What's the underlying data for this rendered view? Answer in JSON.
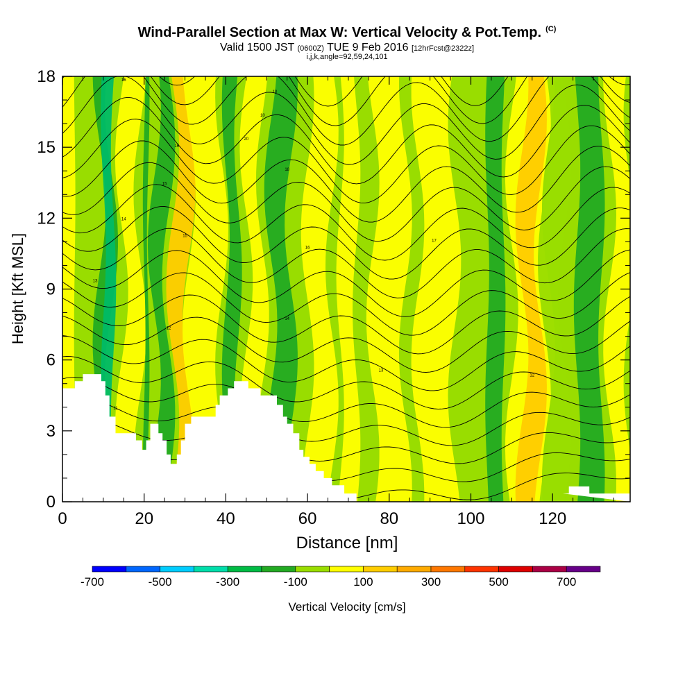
{
  "header": {
    "title": "Wind-Parallel Section at Max W: Vertical Velocity & Pot.Temp.",
    "title_tag": "(C)",
    "valid_prefix": "Valid 1500 JST",
    "valid_z": "(0600Z)",
    "valid_date": "TUE 9 Feb 2016",
    "valid_fcst": "[12hrFcst@2322z]",
    "indices": "i,j,k,angle=92,59,24,101"
  },
  "chart_data": {
    "type": "heatmap",
    "xlabel": "Distance [nm]",
    "ylabel": "Height [Kft MSL]",
    "xlim": [
      0,
      139
    ],
    "ylim": [
      0,
      18
    ],
    "x_ticks": [
      "0",
      "20",
      "40",
      "60",
      "80",
      "100",
      "120"
    ],
    "y_ticks": [
      "0",
      "3",
      "6",
      "9",
      "12",
      "15",
      "18"
    ],
    "x_tick_values": [
      0,
      20,
      40,
      60,
      80,
      100,
      120
    ],
    "y_tick_values": [
      0,
      3,
      6,
      9,
      12,
      15,
      18
    ],
    "background_color": "#99dd00",
    "terrain": [
      [
        0,
        4.8
      ],
      [
        3,
        4.8
      ],
      [
        3,
        5.1
      ],
      [
        5,
        5.1
      ],
      [
        5,
        5.4
      ],
      [
        9.5,
        5.4
      ],
      [
        9.5,
        5.1
      ],
      [
        10.5,
        5.1
      ],
      [
        10.5,
        4.5
      ],
      [
        11.5,
        4.5
      ],
      [
        11.5,
        3.6
      ],
      [
        13,
        3.6
      ],
      [
        13,
        2.9
      ],
      [
        18,
        2.9
      ],
      [
        18,
        2.6
      ],
      [
        19.5,
        2.6
      ],
      [
        19.5,
        2.2
      ],
      [
        20.5,
        2.2
      ],
      [
        20.5,
        2.6
      ],
      [
        21.5,
        2.6
      ],
      [
        21.5,
        3.3
      ],
      [
        23.5,
        3.3
      ],
      [
        23.5,
        2.9
      ],
      [
        24.5,
        2.9
      ],
      [
        24.5,
        2.6
      ],
      [
        25.5,
        2.6
      ],
      [
        25.5,
        2.0
      ],
      [
        26.5,
        2.0
      ],
      [
        26.5,
        1.6
      ],
      [
        28,
        1.6
      ],
      [
        28,
        2.0
      ],
      [
        29,
        2.0
      ],
      [
        29,
        2.6
      ],
      [
        30,
        2.6
      ],
      [
        30,
        3.3
      ],
      [
        31.5,
        3.3
      ],
      [
        31.5,
        3.6
      ],
      [
        37.5,
        3.6
      ],
      [
        37.5,
        4.1
      ],
      [
        38.5,
        4.1
      ],
      [
        38.5,
        4.5
      ],
      [
        40.5,
        4.5
      ],
      [
        40.5,
        4.8
      ],
      [
        42,
        4.8
      ],
      [
        42,
        5.1
      ],
      [
        45.5,
        5.1
      ],
      [
        45.5,
        4.8
      ],
      [
        48.5,
        4.8
      ],
      [
        48.5,
        4.5
      ],
      [
        52.5,
        4.5
      ],
      [
        52.5,
        4.1
      ],
      [
        54,
        4.1
      ],
      [
        54,
        3.6
      ],
      [
        55,
        3.6
      ],
      [
        55,
        3.3
      ],
      [
        56.5,
        3.3
      ],
      [
        56.5,
        2.9
      ],
      [
        58,
        2.9
      ],
      [
        58,
        2.2
      ],
      [
        59,
        2.2
      ],
      [
        59,
        1.9
      ],
      [
        60.5,
        1.9
      ],
      [
        60.5,
        1.6
      ],
      [
        62,
        1.6
      ],
      [
        62,
        1.3
      ],
      [
        64,
        1.3
      ],
      [
        64,
        1.0
      ],
      [
        66,
        1.0
      ],
      [
        66,
        0.7
      ],
      [
        69,
        0.7
      ],
      [
        69,
        0.35
      ],
      [
        72,
        0.35
      ],
      [
        72,
        0
      ],
      [
        139,
        0
      ]
    ],
    "terrain_right": [
      [
        122.5,
        0.35
      ],
      [
        124,
        0.35
      ],
      [
        124,
        0.65
      ],
      [
        129,
        0.65
      ],
      [
        129,
        0.35
      ],
      [
        139,
        0.35
      ],
      [
        139,
        0
      ]
    ],
    "color_bands": [
      {
        "x": [
          0,
          3
        ],
        "color": "#ffff00",
        "w": 0.1
      },
      {
        "x": [
          9,
          12
        ],
        "color": "#22aa22",
        "w": 1
      },
      {
        "x": [
          10,
          12.5
        ],
        "color": "#00bb66",
        "w": 0.4
      },
      {
        "x": [
          14.5,
          19
        ],
        "color": "#ffff00",
        "w": 1
      },
      {
        "x": [
          20,
          21
        ],
        "color": "#22aa22",
        "w": 0.2
      },
      {
        "x": [
          22.5,
          26
        ],
        "color": "#22aa22",
        "w": 1
      },
      {
        "x": [
          27,
          31
        ],
        "color": "#ffcc00",
        "w": 1
      },
      {
        "x": [
          31,
          39
        ],
        "color": "#ffff00",
        "w": 1
      },
      {
        "x": [
          40,
          43
        ],
        "color": "#22aa22",
        "w": 0.6
      },
      {
        "x": [
          45,
          49
        ],
        "color": "#ffff00",
        "w": 1
      },
      {
        "x": [
          51,
          56
        ],
        "color": "#22aa22",
        "w": 1
      },
      {
        "x": [
          60,
          66
        ],
        "color": "#ffff00",
        "w": 1
      },
      {
        "x": [
          68,
          72
        ],
        "color": "#ffff00",
        "w": 0.6
      },
      {
        "x": [
          76,
          84
        ],
        "color": "#ffff00",
        "w": 1
      },
      {
        "x": [
          87,
          96
        ],
        "color": "#ffff00",
        "w": 1
      },
      {
        "x": [
          104,
          108
        ],
        "color": "#22aa22",
        "w": 0.3
      },
      {
        "x": [
          110,
          119
        ],
        "color": "#ffff00",
        "w": 1
      },
      {
        "x": [
          112.5,
          117
        ],
        "color": "#ffcc00",
        "w": 1
      },
      {
        "x": [
          118,
          123
        ],
        "color": "#99dd00",
        "w": 1
      },
      {
        "x": [
          126,
          132
        ],
        "color": "#22aa22",
        "w": 0.5
      },
      {
        "x": [
          134,
          139
        ],
        "color": "#ffff00",
        "w": 1
      }
    ],
    "colorbar": {
      "title": "Vertical Velocity [cm/s]",
      "labels": [
        "-700",
        "-500",
        "-300",
        "-100",
        "100",
        "300",
        "500",
        "700"
      ],
      "colors": [
        "#0000ff",
        "#0066ff",
        "#00ccff",
        "#00ddaa",
        "#00bb44",
        "#22aa22",
        "#99dd00",
        "#ffff00",
        "#ffcc00",
        "#ffaa00",
        "#ff7700",
        "#ff3300",
        "#dd0000",
        "#aa0044",
        "#660088"
      ]
    },
    "contour_labels": [
      "16",
      "16",
      "15",
      "14",
      "15",
      "13",
      "12",
      "11",
      "10",
      "10",
      "20",
      "18",
      "16",
      "14",
      "13",
      "12",
      "17"
    ]
  }
}
